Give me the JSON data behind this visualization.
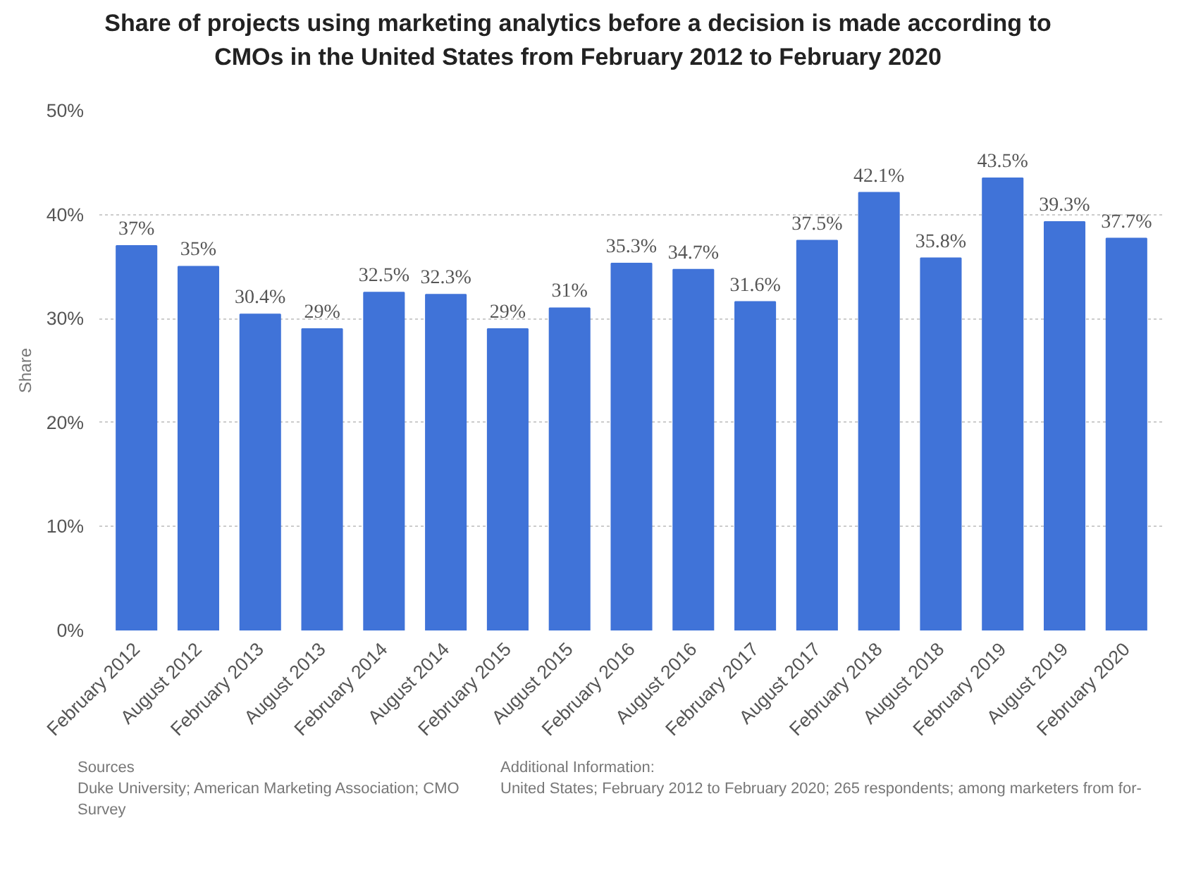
{
  "chart_data": {
    "type": "bar",
    "title": "Share of projects using marketing analytics before a decision is made according to CMOs in the United States from February 2012 to February 2020",
    "categories": [
      "February 2012",
      "August 2012",
      "February 2013",
      "August 2013",
      "February 2014",
      "August 2014",
      "February 2015",
      "August 2015",
      "February 2016",
      "August 2016",
      "February 2017",
      "August 2017",
      "February 2018",
      "August 2018",
      "February 2019",
      "August 2019",
      "February 2020"
    ],
    "values": [
      37,
      35,
      30.4,
      29,
      32.5,
      32.3,
      29,
      31,
      35.3,
      34.7,
      31.6,
      37.5,
      42.1,
      35.8,
      43.5,
      39.3,
      37.7
    ],
    "value_labels": [
      "37%",
      "35%",
      "30.4%",
      "29%",
      "32.5%",
      "32.3%",
      "29%",
      "31%",
      "35.3%",
      "34.7%",
      "31.6%",
      "37.5%",
      "42.1%",
      "35.8%",
      "43.5%",
      "39.3%",
      "37.7%"
    ],
    "color": "#4073d8",
    "ylabel": "Share",
    "ylim": [
      0,
      50
    ],
    "yticks": [
      {
        "value": 0,
        "label": "0%"
      },
      {
        "value": 10,
        "label": "10%"
      },
      {
        "value": 20,
        "label": "20%"
      },
      {
        "value": 30,
        "label": "30%"
      },
      {
        "value": 40,
        "label": "40%"
      },
      {
        "value": 50,
        "label": "50%"
      }
    ],
    "grid": "y",
    "annotations": [
      "Sources",
      "Duke University; American Marketing Association; CMO Survey",
      "Additional Information:",
      "United States; February 2012 to February 2020; 265 respondents; among marketers from for-"
    ]
  }
}
